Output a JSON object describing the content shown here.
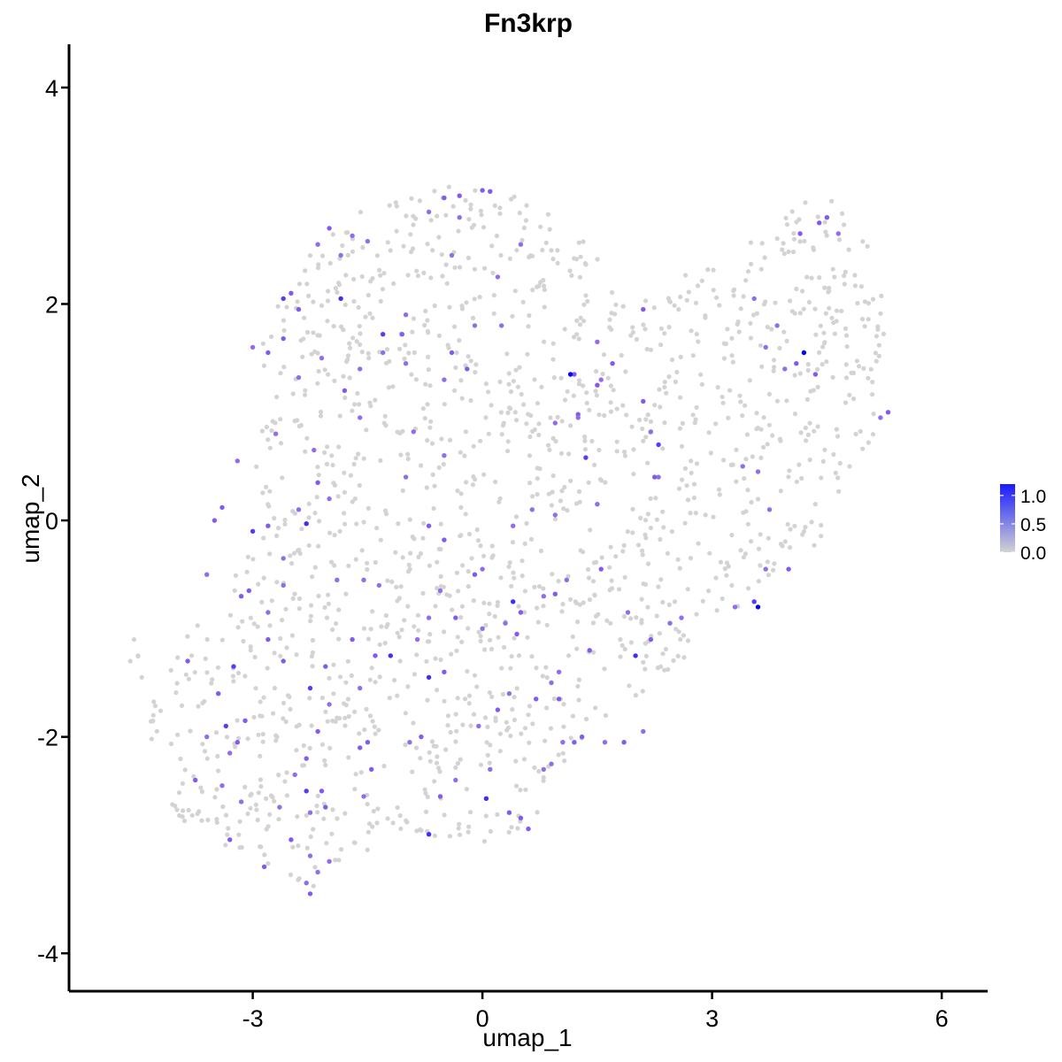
{
  "chart_data": {
    "type": "scatter",
    "title": "Fn3krp",
    "xlabel": "umap_1",
    "ylabel": "umap_2",
    "xlim": [
      -5.4,
      6.6
    ],
    "ylim": [
      -4.35,
      4.4
    ],
    "x_ticks": [
      -3,
      0,
      3,
      6
    ],
    "x_tick_labels": [
      "-3",
      "0",
      "3",
      "6"
    ],
    "y_ticks": [
      -4,
      -2,
      0,
      2,
      4
    ],
    "y_tick_labels": [
      "-4",
      "-2",
      "0",
      "2",
      "4"
    ],
    "grid": false,
    "legend": {
      "placement": "right",
      "type": "colorbar",
      "ticks": [
        0.0,
        0.5,
        1.0
      ],
      "tick_labels": [
        "0.0",
        "0.5",
        "1.0"
      ],
      "range": [
        0,
        1.2
      ]
    },
    "colors": {
      "low": "#d3d3d3",
      "high": "#0000ff"
    },
    "expressing_points": [
      [
        -0.5,
        2.98,
        0.6
      ],
      [
        -0.3,
        3.0,
        0.6
      ],
      [
        0.0,
        3.05,
        0.6
      ],
      [
        0.1,
        3.04,
        0.6
      ],
      [
        -2.0,
        2.7,
        0.6
      ],
      [
        -2.15,
        2.55,
        0.5
      ],
      [
        -1.7,
        2.63,
        0.5
      ],
      [
        -1.5,
        2.58,
        0.5
      ],
      [
        -0.3,
        2.8,
        0.5
      ],
      [
        -0.4,
        2.45,
        0.5
      ],
      [
        0.5,
        2.55,
        0.5
      ],
      [
        0.25,
        1.8,
        0.5
      ],
      [
        -0.1,
        1.8,
        0.5
      ],
      [
        0.2,
        2.25,
        0.5
      ],
      [
        -2.6,
        2.05,
        0.8
      ],
      [
        -2.5,
        2.1,
        0.6
      ],
      [
        -2.4,
        1.95,
        0.6
      ],
      [
        -1.85,
        2.05,
        0.9
      ],
      [
        -1.3,
        1.72,
        0.8
      ],
      [
        -2.6,
        1.68,
        0.6
      ],
      [
        -2.8,
        1.55,
        0.6
      ],
      [
        -3.0,
        1.6,
        0.5
      ],
      [
        -1.3,
        1.55,
        0.5
      ],
      [
        -1.05,
        1.72,
        0.6
      ],
      [
        -0.4,
        1.55,
        0.6
      ],
      [
        -1.0,
        1.45,
        0.5
      ],
      [
        -2.1,
        1.5,
        0.5
      ],
      [
        -1.6,
        1.4,
        0.5
      ],
      [
        -1.8,
        1.2,
        0.6
      ],
      [
        -2.4,
        1.32,
        0.5
      ],
      [
        -0.5,
        1.3,
        0.5
      ],
      [
        -0.2,
        1.4,
        0.6
      ],
      [
        -1.6,
        0.95,
        0.5
      ],
      [
        -2.2,
        0.65,
        0.5
      ],
      [
        -0.9,
        0.82,
        0.5
      ],
      [
        -0.5,
        0.6,
        0.5
      ],
      [
        -1.0,
        0.4,
        0.5
      ],
      [
        -2.0,
        0.2,
        0.5
      ],
      [
        -2.4,
        0.1,
        0.5
      ],
      [
        -2.7,
        0.8,
        0.5
      ],
      [
        -3.2,
        0.55,
        0.5
      ],
      [
        -3.4,
        0.12,
        0.6
      ],
      [
        -3.5,
        0.0,
        0.6
      ],
      [
        -2.8,
        -0.05,
        0.6
      ],
      [
        -3.0,
        -0.1,
        0.8
      ],
      [
        -3.6,
        -0.5,
        0.5
      ],
      [
        -3.05,
        -0.65,
        0.6
      ],
      [
        -3.15,
        -0.7,
        0.6
      ],
      [
        -2.6,
        -0.6,
        0.5
      ],
      [
        -2.8,
        -0.85,
        0.5
      ],
      [
        -2.3,
        -0.03,
        0.9
      ],
      [
        -2.6,
        -0.35,
        0.5
      ],
      [
        -1.9,
        -0.55,
        0.5
      ],
      [
        -1.55,
        -0.55,
        0.5
      ],
      [
        -1.35,
        -0.6,
        0.5
      ],
      [
        -0.7,
        -0.05,
        0.6
      ],
      [
        -0.5,
        -0.18,
        0.6
      ],
      [
        0.4,
        -0.05,
        0.5
      ],
      [
        0.65,
        0.1,
        0.5
      ],
      [
        0.95,
        0.05,
        0.5
      ],
      [
        0.0,
        -0.45,
        0.5
      ],
      [
        -0.1,
        -0.5,
        0.6
      ],
      [
        -0.55,
        -0.65,
        0.5
      ],
      [
        0.4,
        -0.75,
        0.9
      ],
      [
        0.5,
        -0.85,
        0.6
      ],
      [
        0.8,
        -0.7,
        0.5
      ],
      [
        0.95,
        -0.68,
        0.6
      ],
      [
        0.3,
        -0.95,
        0.5
      ],
      [
        0.45,
        -1.05,
        0.6
      ],
      [
        -0.35,
        -0.9,
        0.6
      ],
      [
        -0.7,
        -0.9,
        0.5
      ],
      [
        0.0,
        -1.0,
        0.5
      ],
      [
        1.1,
        -0.55,
        0.5
      ],
      [
        1.55,
        -0.45,
        0.6
      ],
      [
        1.9,
        -0.85,
        0.5
      ],
      [
        2.2,
        -1.1,
        0.6
      ],
      [
        2.6,
        -0.9,
        0.5
      ],
      [
        2.45,
        -0.95,
        0.5
      ],
      [
        2.0,
        -1.25,
        0.9
      ],
      [
        1.4,
        -1.2,
        0.6
      ],
      [
        1.0,
        -1.4,
        0.5
      ],
      [
        0.9,
        -1.5,
        0.5
      ],
      [
        0.7,
        -1.65,
        0.6
      ],
      [
        0.35,
        -1.6,
        0.5
      ],
      [
        0.2,
        -1.75,
        0.6
      ],
      [
        -0.05,
        -1.9,
        0.5
      ],
      [
        -0.7,
        -1.45,
        0.9
      ],
      [
        -0.5,
        -1.4,
        0.6
      ],
      [
        -0.85,
        -1.1,
        0.5
      ],
      [
        -1.2,
        -1.25,
        0.9
      ],
      [
        -1.4,
        -1.25,
        0.6
      ],
      [
        -1.7,
        -1.1,
        0.6
      ],
      [
        -2.05,
        -1.35,
        0.6
      ],
      [
        -2.8,
        -1.1,
        0.6
      ],
      [
        -2.6,
        -1.3,
        0.6
      ],
      [
        -3.25,
        -1.35,
        0.8
      ],
      [
        -3.85,
        -1.3,
        0.6
      ],
      [
        -3.45,
        -1.6,
        0.6
      ],
      [
        -3.35,
        -1.9,
        0.8
      ],
      [
        -3.1,
        -1.85,
        0.6
      ],
      [
        -2.25,
        -1.55,
        0.8
      ],
      [
        -2.0,
        -1.7,
        0.5
      ],
      [
        -1.6,
        -1.55,
        0.5
      ],
      [
        -1.5,
        -2.05,
        0.6
      ],
      [
        -1.6,
        -2.1,
        0.6
      ],
      [
        -1.45,
        -2.3,
        0.6
      ],
      [
        -0.95,
        -2.05,
        0.5
      ],
      [
        -0.8,
        -2.0,
        0.6
      ],
      [
        -2.15,
        -1.95,
        0.6
      ],
      [
        -2.3,
        -2.2,
        0.6
      ],
      [
        -2.45,
        -2.35,
        0.5
      ],
      [
        -2.3,
        -2.5,
        0.8
      ],
      [
        -2.1,
        -2.5,
        0.6
      ],
      [
        -2.05,
        -2.65,
        0.6
      ],
      [
        -2.25,
        -2.7,
        0.5
      ],
      [
        -2.5,
        -2.95,
        0.6
      ],
      [
        -3.2,
        -2.05,
        0.6
      ],
      [
        -3.3,
        -2.15,
        0.5
      ],
      [
        -3.6,
        -2.0,
        0.5
      ],
      [
        -3.75,
        -2.4,
        0.6
      ],
      [
        -3.4,
        -2.45,
        0.5
      ],
      [
        -3.15,
        -2.6,
        0.5
      ],
      [
        -2.65,
        -2.65,
        0.5
      ],
      [
        -3.3,
        -2.95,
        0.6
      ],
      [
        -2.85,
        -3.2,
        0.6
      ],
      [
        -2.25,
        -3.1,
        0.5
      ],
      [
        -2.3,
        -3.35,
        0.5
      ],
      [
        -2.0,
        -3.15,
        0.5
      ],
      [
        -2.25,
        -3.45,
        0.6
      ],
      [
        -2.15,
        -3.25,
        0.5
      ],
      [
        -1.55,
        -2.55,
        0.5
      ],
      [
        -0.7,
        -2.9,
        0.9
      ],
      [
        -0.55,
        -2.55,
        0.6
      ],
      [
        -0.35,
        -2.4,
        0.5
      ],
      [
        0.05,
        -2.57,
        0.9
      ],
      [
        0.35,
        -2.7,
        0.6
      ],
      [
        0.5,
        -2.75,
        0.6
      ],
      [
        0.6,
        -2.85,
        0.6
      ],
      [
        0.1,
        -2.3,
        0.5
      ],
      [
        1.0,
        -1.65,
        0.6
      ],
      [
        1.3,
        -2.0,
        0.6
      ],
      [
        1.05,
        -2.05,
        0.5
      ],
      [
        1.85,
        -2.05,
        0.6
      ],
      [
        2.1,
        -1.95,
        0.5
      ],
      [
        1.6,
        -2.05,
        0.5
      ],
      [
        0.9,
        -2.25,
        0.5
      ],
      [
        0.8,
        -2.3,
        0.5
      ],
      [
        1.2,
        -2.05,
        0.6
      ],
      [
        3.3,
        -0.8,
        0.5
      ],
      [
        3.55,
        -0.75,
        0.8
      ],
      [
        3.6,
        -0.8,
        1.2
      ],
      [
        3.7,
        -0.45,
        0.5
      ],
      [
        4.0,
        -0.45,
        0.6
      ],
      [
        3.75,
        0.1,
        0.5
      ],
      [
        3.6,
        0.45,
        0.5
      ],
      [
        4.2,
        1.55,
        1.2
      ],
      [
        4.1,
        1.45,
        0.6
      ],
      [
        4.35,
        1.35,
        0.6
      ],
      [
        3.95,
        1.4,
        0.5
      ],
      [
        3.7,
        1.6,
        0.5
      ],
      [
        3.85,
        1.8,
        0.5
      ],
      [
        3.55,
        2.05,
        0.5
      ],
      [
        4.15,
        2.65,
        0.6
      ],
      [
        4.4,
        2.75,
        0.6
      ],
      [
        4.5,
        2.8,
        0.6
      ],
      [
        4.65,
        2.65,
        0.5
      ],
      [
        5.3,
        1.0,
        0.6
      ],
      [
        5.2,
        0.95,
        0.5
      ],
      [
        3.4,
        0.5,
        0.5
      ],
      [
        2.3,
        0.4,
        0.5
      ],
      [
        2.25,
        0.4,
        0.6
      ],
      [
        2.3,
        0.7,
        0.8
      ],
      [
        2.2,
        0.82,
        0.5
      ],
      [
        1.55,
        1.3,
        0.5
      ],
      [
        1.5,
        1.25,
        0.6
      ],
      [
        1.2,
        1.35,
        0.6
      ],
      [
        1.15,
        1.35,
        1.2
      ],
      [
        0.95,
        0.9,
        0.5
      ],
      [
        1.25,
        0.98,
        0.6
      ],
      [
        1.25,
        0.95,
        0.5
      ],
      [
        1.35,
        0.58,
        0.8
      ],
      [
        2.1,
        1.1,
        0.6
      ],
      [
        2.1,
        1.95,
        0.6
      ],
      [
        1.5,
        1.65,
        0.5
      ],
      [
        1.7,
        1.45,
        0.6
      ],
      [
        1.5,
        0.15,
        0.5
      ],
      [
        -1.85,
        2.45,
        0.5
      ],
      [
        -0.7,
        2.85,
        0.5
      ],
      [
        -1.0,
        1.9,
        0.5
      ],
      [
        -2.15,
        0.35,
        0.6
      ]
    ]
  }
}
